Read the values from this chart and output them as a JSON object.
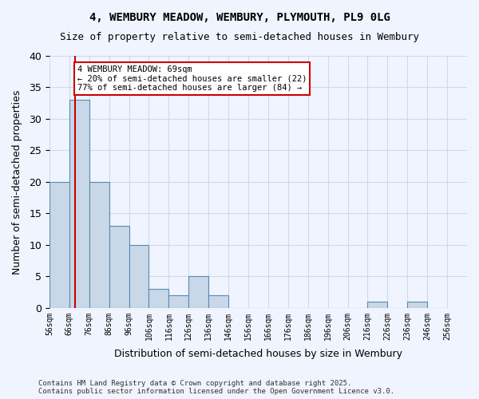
{
  "title1": "4, WEMBURY MEADOW, WEMBURY, PLYMOUTH, PL9 0LG",
  "title2": "Size of property relative to semi-detached houses in Wembury",
  "xlabel": "Distribution of semi-detached houses by size in Wembury",
  "ylabel": "Number of semi-detached properties",
  "bin_edges": [
    56,
    66,
    76,
    86,
    96,
    106,
    116,
    126,
    136,
    146,
    156,
    166,
    176,
    186,
    196,
    206,
    216,
    226,
    236,
    246,
    256
  ],
  "counts": [
    20,
    33,
    20,
    13,
    10,
    3,
    2,
    5,
    2,
    0,
    0,
    0,
    0,
    0,
    0,
    0,
    1,
    0,
    1,
    0
  ],
  "bar_color": "#c8d8e8",
  "bar_edge_color": "#5a8ab0",
  "subject_value": 69,
  "vline_color": "#cc0000",
  "annotation_text": "4 WEMBURY MEADOW: 69sqm\n← 20% of semi-detached houses are smaller (22)\n77% of semi-detached houses are larger (84) →",
  "annotation_box_color": "#ffffff",
  "annotation_box_edge_color": "#cc0000",
  "yticks": [
    0,
    5,
    10,
    15,
    20,
    25,
    30,
    35,
    40
  ],
  "ylim": [
    0,
    40
  ],
  "grid_color": "#d0d8e8",
  "background_color": "#f0f4ff",
  "footer_text": "Contains HM Land Registry data © Crown copyright and database right 2025.\nContains public sector information licensed under the Open Government Licence v3.0.",
  "tick_labels": [
    "56sqm",
    "66sqm",
    "76sqm",
    "86sqm",
    "96sqm",
    "106sqm",
    "116sqm",
    "126sqm",
    "136sqm",
    "146sqm",
    "156sqm",
    "166sqm",
    "176sqm",
    "186sqm",
    "196sqm",
    "206sqm",
    "216sqm",
    "226sqm",
    "236sqm",
    "246sqm",
    "256sqm"
  ]
}
